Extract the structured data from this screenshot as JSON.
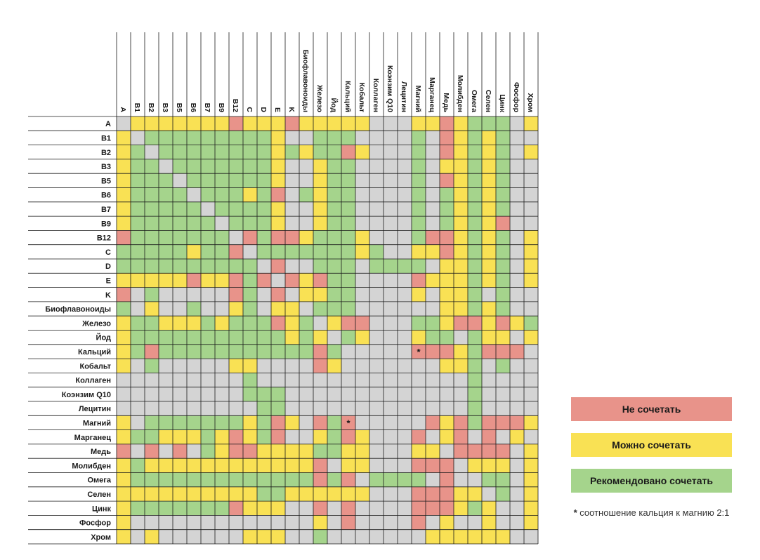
{
  "chart_data": {
    "type": "heatmap",
    "title": "",
    "columns": [
      "A",
      "B1",
      "B2",
      "B3",
      "B5",
      "B6",
      "B7",
      "B9",
      "B12",
      "C",
      "D",
      "E",
      "K",
      "Биофлавоноиды",
      "Железо",
      "Йод",
      "Кальций",
      "Кобальт",
      "Коллаген",
      "Коэнзим Q10",
      "Лецитин",
      "Магний",
      "Марганец",
      "Медь",
      "Молибден",
      "Омега",
      "Селен",
      "Цинк",
      "Фосфор",
      "Хром"
    ],
    "rows": [
      "A",
      "B1",
      "B2",
      "B3",
      "B5",
      "B6",
      "B7",
      "B9",
      "B12",
      "C",
      "D",
      "E",
      "K",
      "Биофлавоноиды",
      "Железо",
      "Йод",
      "Кальций",
      "Кобальт",
      "Коллаген",
      "Коэнзим Q10",
      "Лецитин",
      "Магний",
      "Марганец",
      "Медь",
      "Молибден",
      "Омега",
      "Селен",
      "Цинк",
      "Фосфор",
      "Хром"
    ],
    "value_codes": {
      "G": "Рекомендовано сочетать",
      "Y": "Можно сочетать",
      "R": "Не сочетать",
      "N": ""
    },
    "cells": [
      "NYYYYYYYRYYYRYYYYYNNNYYRYGGGNY",
      "YNGGGGGGGGGYNNGGGNNNNGNRYGYGNN",
      "YGNGGGGGGGGYGYGGRYNNNGNRYGYGNY",
      "YGGNGGGGGGGYNNYGGNNNNGNYYGYGNN",
      "YGGGNGGGGGGYNNYGGNNNNGNRYGYGNN",
      "YGGGGNGGGYGRNGYGGNNNNGNGYGYGNN",
      "YGGGGGNGGGGYNNYGGNNNNGNGYGYGNN",
      "YGGGGGGNGGGYNNYGGNNNNGNGYGYRNN",
      "RGGGGGGGNRGRRYGGGYNNNGRRYGYGNY",
      "GGGGGYGGRNGGGGGGGYGNNYYRYGYGNY",
      "GGGGGGGGGGNRNNGGGNGGGGNYYGYGNY",
      "YYYYYRYYRGRNRYRGGNNNNRYYYGYGNY",
      "RNGNNNNNRGNRNYYGGNNNNYNYYGNGNN",
      "GNYNNGNNYGNYYNGGGNNNNNNYYGYGNN",
      "YGGYYYGYGGGRYGNYRRNNNGGYRRYRYG",
      "YGGGGGGGGGGGYGYNGYNNNYGGNGYYNY",
      "YGRGGGGGGGGGGGRGNNNNNRRRYGRRRN",
      "YNGNNNNNYYNNNNRYNNNNNNNYYGNGNN",
      "NNNNNNNNNGNNNNNNNNNNNNNNNGNNNN",
      "NNNNNNNNNGGGNNNNNNNNNNNNNGNNNN",
      "NNNNNNNNNNGGNNNNNNNNNNNNNGNNNN",
      "YNGGGGGGGYGRYNRGRNNNNNRYRGRRRY",
      "YGGYYYGYRYGRNNYGRYNNNRNYRNRNYN",
      "RNRNRNGYRRYYYYGGYYNNNYYNRRRRNY",
      "YGYYYYYYYYYYYYRNYYNNNRRRNYYYNY",
      "YGGGGGGGGGGGGGRGRNGGGGNRNNGGNY",
      "YYYYYYYYYYGGYYYYYYNNNRRRYYNGNY",
      "YGGGGGGGRYYYNNRNRNNNNRRRYGYNNY",
      "YNNNNNNNNNNNNNYNRNNNNRNYNNYNNY",
      "YNYNNNNNNYYYNNGNNNNNNNYYYYYYNN"
    ],
    "annotations": [
      {
        "row": "Кальций",
        "column": "Магний",
        "text": "*"
      },
      {
        "row": "Магний",
        "column": "Кальций",
        "text": "*"
      }
    ],
    "colors": {
      "G": "#a5d48c",
      "Y": "#f9e154",
      "R": "#e8938a",
      "N": "#d4d4d4"
    },
    "legend": [
      {
        "code": "R",
        "label": "Не сочетать"
      },
      {
        "code": "Y",
        "label": "Можно сочетать"
      },
      {
        "code": "G",
        "label": "Рекомендовано сочетать"
      }
    ],
    "footnote": {
      "star": "*",
      "text": "соотношение кальция к магнию 2:1"
    }
  }
}
